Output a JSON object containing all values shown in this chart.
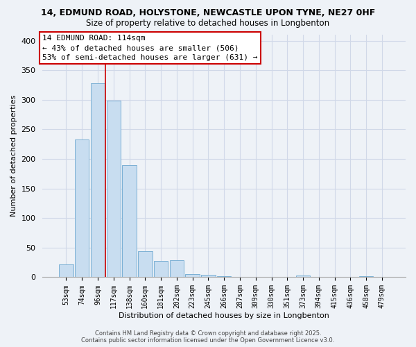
{
  "title1": "14, EDMUND ROAD, HOLYSTONE, NEWCASTLE UPON TYNE, NE27 0HF",
  "title2": "Size of property relative to detached houses in Longbenton",
  "xlabel": "Distribution of detached houses by size in Longbenton",
  "ylabel": "Number of detached properties",
  "categories": [
    "53sqm",
    "74sqm",
    "96sqm",
    "117sqm",
    "138sqm",
    "160sqm",
    "181sqm",
    "202sqm",
    "223sqm",
    "245sqm",
    "266sqm",
    "287sqm",
    "309sqm",
    "330sqm",
    "351sqm",
    "373sqm",
    "394sqm",
    "415sqm",
    "436sqm",
    "458sqm",
    "479sqm"
  ],
  "values": [
    22,
    233,
    328,
    298,
    190,
    44,
    28,
    29,
    5,
    4,
    2,
    0,
    0,
    0,
    0,
    3,
    0,
    0,
    0,
    2,
    0
  ],
  "bar_color": "#c8ddf0",
  "bar_edge_color": "#7aafd4",
  "vline_color": "#cc0000",
  "vline_x_idx": 2.5,
  "ylim": [
    0,
    410
  ],
  "yticks": [
    0,
    50,
    100,
    150,
    200,
    250,
    300,
    350,
    400
  ],
  "annotation_title": "14 EDMUND ROAD: 114sqm",
  "annotation_line1": "← 43% of detached houses are smaller (506)",
  "annotation_line2": "53% of semi-detached houses are larger (631) →",
  "footer1": "Contains HM Land Registry data © Crown copyright and database right 2025.",
  "footer2": "Contains public sector information licensed under the Open Government Licence v3.0.",
  "bg_color": "#eef2f7",
  "grid_color": "#d0d8e8",
  "title1_fontsize": 9,
  "title2_fontsize": 8.5,
  "tick_fontsize": 7,
  "ylabel_fontsize": 8,
  "xlabel_fontsize": 8,
  "ann_fontsize": 8
}
